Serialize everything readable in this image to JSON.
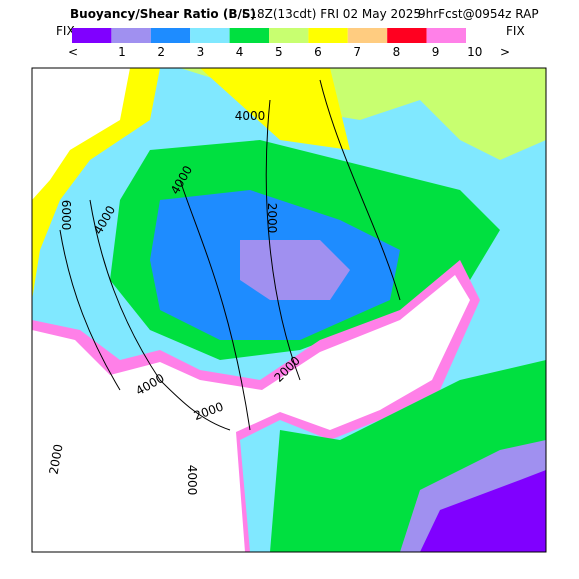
{
  "header": {
    "title": "Buoyancy/Shear Ratio (B/S)",
    "valid": "I 18Z(13cdt) FRI 02 May 2025",
    "forecast": "9hrFcst@0954z RAP"
  },
  "legend": {
    "left": "FIX",
    "right": "FIX",
    "low": "<",
    "high": ">",
    "ticks": [
      "1",
      "2",
      "3",
      "4",
      "5",
      "6",
      "7",
      "8",
      "9",
      "10"
    ],
    "colors": [
      "#8000ff",
      "#a090f0",
      "#1e8cff",
      "#80e8ff",
      "#00e040",
      "#c8ff70",
      "#ffff00",
      "#ffcc80",
      "#ff0020",
      "#ff80e8"
    ]
  },
  "contour_labels": [
    "6000",
    "4000",
    "4000",
    "2000",
    "2000",
    "4000",
    "2000",
    "2000",
    "4000",
    "4000"
  ]
}
